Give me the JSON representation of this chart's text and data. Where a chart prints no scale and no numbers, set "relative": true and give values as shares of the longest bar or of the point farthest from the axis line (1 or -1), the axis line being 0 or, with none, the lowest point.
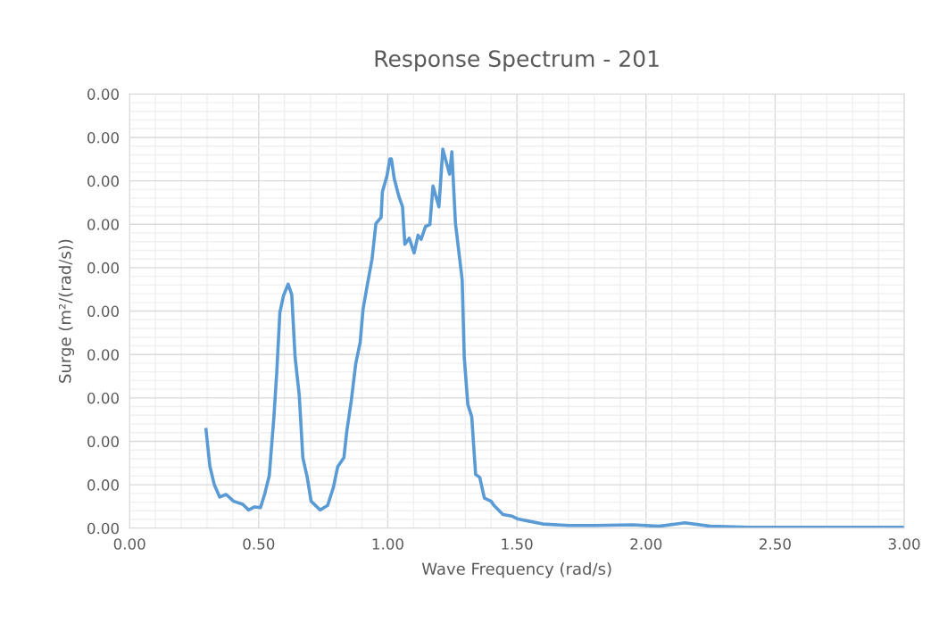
{
  "chart_data": {
    "type": "line",
    "title": "Response Spectrum - 201",
    "xlabel": "Wave Frequency (rad/s)",
    "ylabel": "Surge (m²/(rad/s))",
    "relative": true,
    "x": [
      0.296,
      0.311,
      0.328,
      0.349,
      0.374,
      0.403,
      0.438,
      0.461,
      0.484,
      0.507,
      0.524,
      0.541,
      0.559,
      0.57,
      0.582,
      0.596,
      0.614,
      0.628,
      0.641,
      0.657,
      0.671,
      0.688,
      0.703,
      0.738,
      0.767,
      0.789,
      0.806,
      0.83,
      0.841,
      0.858,
      0.876,
      0.893,
      0.904,
      0.922,
      0.939,
      0.954,
      0.974,
      0.979,
      0.997,
      1.008,
      1.014,
      1.025,
      1.043,
      1.057,
      1.066,
      1.083,
      1.102,
      1.117,
      1.129,
      1.146,
      1.163,
      1.175,
      1.198,
      1.213,
      1.239,
      1.248,
      1.262,
      1.279,
      1.288,
      1.296,
      1.31,
      1.325,
      1.34,
      1.356,
      1.374,
      1.4,
      1.411,
      1.446,
      1.48,
      1.504,
      1.55,
      1.6,
      1.7,
      1.8,
      1.95,
      2.05,
      2.15,
      2.25,
      2.4,
      3.0
    ],
    "series": [
      {
        "color": "#5b9bd5",
        "values": [
          0.26,
          0.163,
          0.115,
          0.082,
          0.089,
          0.071,
          0.063,
          0.048,
          0.056,
          0.054,
          0.092,
          0.139,
          0.294,
          0.412,
          0.569,
          0.613,
          0.644,
          0.616,
          0.451,
          0.351,
          0.186,
          0.134,
          0.071,
          0.048,
          0.06,
          0.107,
          0.162,
          0.186,
          0.255,
          0.333,
          0.435,
          0.49,
          0.577,
          0.647,
          0.71,
          0.804,
          0.82,
          0.887,
          0.93,
          0.974,
          0.974,
          0.922,
          0.875,
          0.848,
          0.749,
          0.765,
          0.726,
          0.773,
          0.762,
          0.796,
          0.801,
          0.903,
          0.848,
          1,
          0.934,
          0.993,
          0.804,
          0.707,
          0.655,
          0.451,
          0.326,
          0.294,
          0.142,
          0.134,
          0.079,
          0.071,
          0.06,
          0.036,
          0.032,
          0.024,
          0.018,
          0.011,
          0.007,
          0.007,
          0.009,
          0.005,
          0.014,
          0.005,
          0.002,
          0.002
        ]
      }
    ],
    "xlim": [
      0,
      3
    ],
    "xticks": [
      {
        "value": 0,
        "label": "0.00"
      },
      {
        "value": 0.5,
        "label": "0.50"
      },
      {
        "value": 1,
        "label": "1.00"
      },
      {
        "value": 1.5,
        "label": "1.50"
      },
      {
        "value": 2,
        "label": "2.00"
      },
      {
        "value": 2.5,
        "label": "2.50"
      },
      {
        "value": 3,
        "label": "3.00"
      }
    ],
    "annotations": [
      "0.00",
      "0.00",
      "0.00",
      "0.00",
      "0.00",
      "0.00",
      "0.00",
      "0.00",
      "0.00",
      "0.00",
      "0.00"
    ],
    "grid": true,
    "marker": "none",
    "line_style": "solid"
  }
}
